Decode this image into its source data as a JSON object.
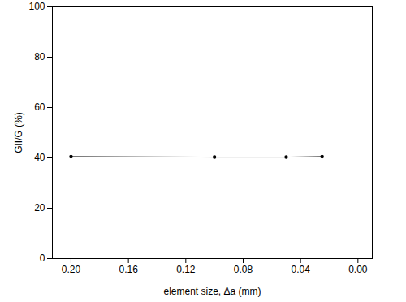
{
  "chart_data": {
    "type": "line",
    "xlabel": "element size, Δa (mm)",
    "ylabel": "GII/G (%)",
    "x": [
      0.2,
      0.1,
      0.05,
      0.025
    ],
    "values": [
      40.5,
      40.3,
      40.3,
      40.5
    ],
    "color": "#000000",
    "marker": "circle",
    "xlim": [
      0.213,
      -0.01
    ],
    "xticks": [
      {
        "value": 0.2,
        "label": "0.20"
      },
      {
        "value": 0.16,
        "label": "0.16"
      },
      {
        "value": 0.12,
        "label": "0.12"
      },
      {
        "value": 0.08,
        "label": "0.08"
      },
      {
        "value": 0.04,
        "label": "0.04"
      },
      {
        "value": 0,
        "label": "0.00"
      }
    ],
    "ylim": [
      0,
      100
    ],
    "yticks": [
      0,
      20,
      40,
      60,
      80,
      100
    ],
    "grid": false
  }
}
